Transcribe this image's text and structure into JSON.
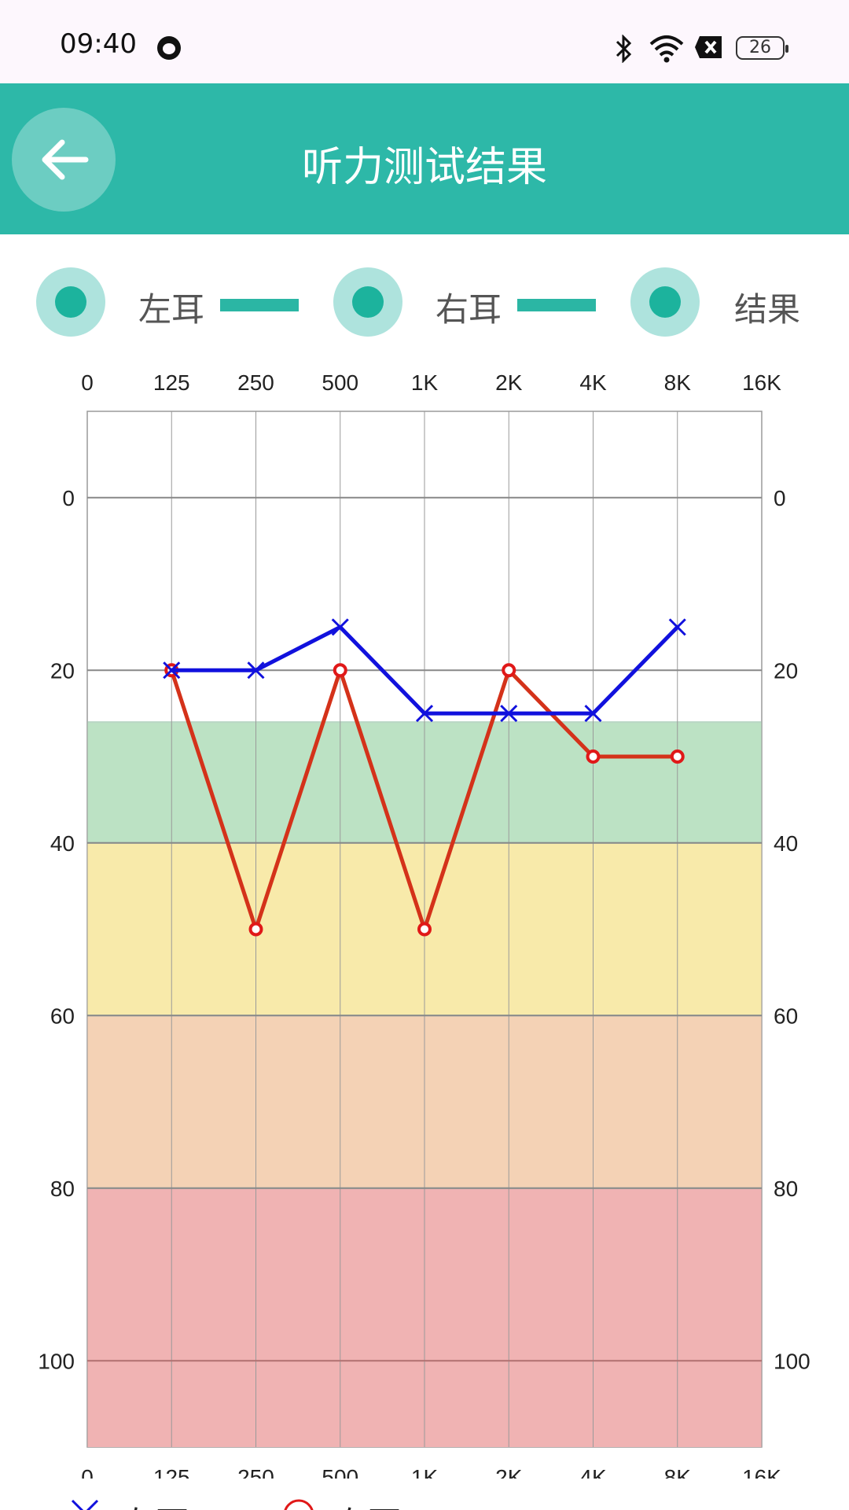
{
  "status_bar": {
    "time": "09:40",
    "icons": [
      "face-icon",
      "bluetooth-icon",
      "wifi-icon",
      "notification-x-icon",
      "battery-icon"
    ],
    "battery": "26"
  },
  "header": {
    "title": "听力测试结果",
    "back_icon": "arrow-left-icon"
  },
  "tabs": [
    {
      "label": "左耳",
      "selected": true
    },
    {
      "label": "右耳",
      "selected": true
    },
    {
      "label": "结果",
      "selected": true
    }
  ],
  "colors": {
    "accent": "#2db8a8",
    "left_ear_line": "#1111dd",
    "right_ear_line": "#e01818",
    "band_normal": "#bce2c4",
    "band_mild": "#f8eaaa",
    "band_moderate": "#f4d2b5",
    "band_severe": "#f0b3b3"
  },
  "chart_data": {
    "type": "line",
    "x_tick_labels": [
      "0",
      "125",
      "250",
      "500",
      "1K",
      "2K",
      "4K",
      "8K",
      "16K"
    ],
    "y_tick_labels": [
      "0",
      "20",
      "40",
      "60",
      "80",
      "100"
    ],
    "y_ticks": [
      0,
      20,
      40,
      60,
      80,
      100
    ],
    "ylim": [
      -10,
      110
    ],
    "y_inverted": true,
    "grid": true,
    "bands": [
      {
        "from": 26,
        "to": 40,
        "color": "#bce2c4"
      },
      {
        "from": 40,
        "to": 60,
        "color": "#f8eaaa"
      },
      {
        "from": 60,
        "to": 80,
        "color": "#f4d2b5"
      },
      {
        "from": 80,
        "to": 110,
        "color": "#f0b3b3"
      }
    ],
    "series": [
      {
        "name": "左耳",
        "marker": "x",
        "color": "#1111dd",
        "x": [
          "125",
          "250",
          "500",
          "1K",
          "2K",
          "4K",
          "8K"
        ],
        "values": [
          20,
          20,
          15,
          25,
          25,
          25,
          15
        ]
      },
      {
        "name": "右耳",
        "marker": "circle",
        "color": "#e01818",
        "x": [
          "125",
          "250",
          "500",
          "1K",
          "2K",
          "4K",
          "8K"
        ],
        "values": [
          20,
          50,
          20,
          50,
          20,
          30,
          30
        ]
      }
    ]
  }
}
